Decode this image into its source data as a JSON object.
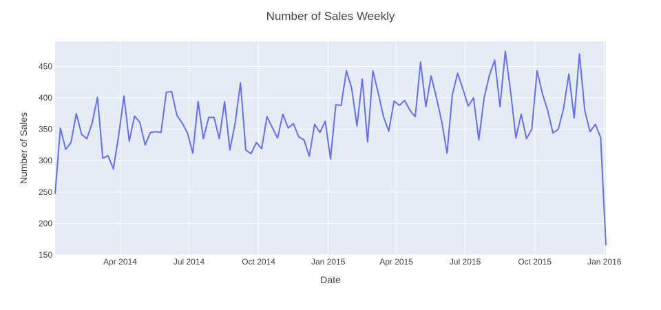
{
  "chart_data": {
    "type": "line",
    "title": "Number of Sales Weekly",
    "xlabel": "Date",
    "ylabel": "Number of Sales",
    "x_range": [
      "2014-01-05",
      "2016-01-03"
    ],
    "ylim": [
      150,
      490
    ],
    "y_ticks": [
      150,
      200,
      250,
      300,
      350,
      400,
      450
    ],
    "x_ticks": [
      {
        "date": "2014-04-01",
        "label": "Apr 2014"
      },
      {
        "date": "2014-07-01",
        "label": "Jul 2014"
      },
      {
        "date": "2014-10-01",
        "label": "Oct 2014"
      },
      {
        "date": "2015-01-01",
        "label": "Jan 2015"
      },
      {
        "date": "2015-04-01",
        "label": "Apr 2015"
      },
      {
        "date": "2015-07-01",
        "label": "Jul 2015"
      },
      {
        "date": "2015-10-01",
        "label": "Oct 2015"
      },
      {
        "date": "2016-01-01",
        "label": "Jan 2016"
      }
    ],
    "grid": true,
    "series": [
      {
        "color": "#636efa",
        "points": [
          [
            "2014-01-05",
            247
          ],
          [
            "2014-01-12",
            352
          ],
          [
            "2014-01-19",
            318
          ],
          [
            "2014-01-26",
            329
          ],
          [
            "2014-02-02",
            375
          ],
          [
            "2014-02-09",
            342
          ],
          [
            "2014-02-16",
            335
          ],
          [
            "2014-02-23",
            360
          ],
          [
            "2014-03-02",
            401
          ],
          [
            "2014-03-09",
            304
          ],
          [
            "2014-03-16",
            308
          ],
          [
            "2014-03-23",
            287
          ],
          [
            "2014-03-30",
            340
          ],
          [
            "2014-04-06",
            403
          ],
          [
            "2014-04-13",
            331
          ],
          [
            "2014-04-20",
            371
          ],
          [
            "2014-04-27",
            361
          ],
          [
            "2014-05-04",
            325
          ],
          [
            "2014-05-11",
            345
          ],
          [
            "2014-05-18",
            346
          ],
          [
            "2014-05-25",
            345
          ],
          [
            "2014-06-01",
            409
          ],
          [
            "2014-06-08",
            410
          ],
          [
            "2014-06-15",
            372
          ],
          [
            "2014-06-22",
            360
          ],
          [
            "2014-06-29",
            344
          ],
          [
            "2014-07-06",
            312
          ],
          [
            "2014-07-13",
            394
          ],
          [
            "2014-07-20",
            335
          ],
          [
            "2014-07-27",
            369
          ],
          [
            "2014-08-03",
            369
          ],
          [
            "2014-08-10",
            335
          ],
          [
            "2014-08-17",
            394
          ],
          [
            "2014-08-24",
            317
          ],
          [
            "2014-08-31",
            360
          ],
          [
            "2014-09-07",
            424
          ],
          [
            "2014-09-14",
            317
          ],
          [
            "2014-09-21",
            311
          ],
          [
            "2014-09-28",
            329
          ],
          [
            "2014-10-05",
            319
          ],
          [
            "2014-10-12",
            370
          ],
          [
            "2014-10-19",
            353
          ],
          [
            "2014-10-26",
            336
          ],
          [
            "2014-11-02",
            374
          ],
          [
            "2014-11-09",
            352
          ],
          [
            "2014-11-16",
            359
          ],
          [
            "2014-11-23",
            338
          ],
          [
            "2014-11-30",
            333
          ],
          [
            "2014-12-07",
            307
          ],
          [
            "2014-12-14",
            358
          ],
          [
            "2014-12-21",
            345
          ],
          [
            "2014-12-28",
            363
          ],
          [
            "2015-01-04",
            303
          ],
          [
            "2015-01-11",
            389
          ],
          [
            "2015-01-18",
            388
          ],
          [
            "2015-01-25",
            443
          ],
          [
            "2015-02-01",
            415
          ],
          [
            "2015-02-08",
            355
          ],
          [
            "2015-02-15",
            430
          ],
          [
            "2015-02-22",
            330
          ],
          [
            "2015-03-01",
            443
          ],
          [
            "2015-03-08",
            408
          ],
          [
            "2015-03-15",
            370
          ],
          [
            "2015-03-22",
            347
          ],
          [
            "2015-03-29",
            395
          ],
          [
            "2015-04-05",
            388
          ],
          [
            "2015-04-12",
            396
          ],
          [
            "2015-04-19",
            380
          ],
          [
            "2015-04-26",
            370
          ],
          [
            "2015-05-03",
            457
          ],
          [
            "2015-05-10",
            386
          ],
          [
            "2015-05-17",
            435
          ],
          [
            "2015-05-24",
            400
          ],
          [
            "2015-05-31",
            362
          ],
          [
            "2015-06-07",
            312
          ],
          [
            "2015-06-14",
            405
          ],
          [
            "2015-06-21",
            439
          ],
          [
            "2015-06-28",
            414
          ],
          [
            "2015-07-05",
            387
          ],
          [
            "2015-07-12",
            400
          ],
          [
            "2015-07-19",
            333
          ],
          [
            "2015-07-26",
            400
          ],
          [
            "2015-08-02",
            436
          ],
          [
            "2015-08-09",
            460
          ],
          [
            "2015-08-16",
            386
          ],
          [
            "2015-08-23",
            474
          ],
          [
            "2015-08-30",
            410
          ],
          [
            "2015-09-06",
            336
          ],
          [
            "2015-09-13",
            374
          ],
          [
            "2015-09-20",
            335
          ],
          [
            "2015-09-27",
            350
          ],
          [
            "2015-10-04",
            443
          ],
          [
            "2015-10-11",
            407
          ],
          [
            "2015-10-18",
            380
          ],
          [
            "2015-10-25",
            344
          ],
          [
            "2015-11-01",
            350
          ],
          [
            "2015-11-08",
            383
          ],
          [
            "2015-11-15",
            438
          ],
          [
            "2015-11-22",
            368
          ],
          [
            "2015-11-29",
            470
          ],
          [
            "2015-12-06",
            380
          ],
          [
            "2015-12-13",
            346
          ],
          [
            "2015-12-20",
            358
          ],
          [
            "2015-12-27",
            337
          ],
          [
            "2016-01-03",
            165
          ]
        ]
      }
    ]
  }
}
